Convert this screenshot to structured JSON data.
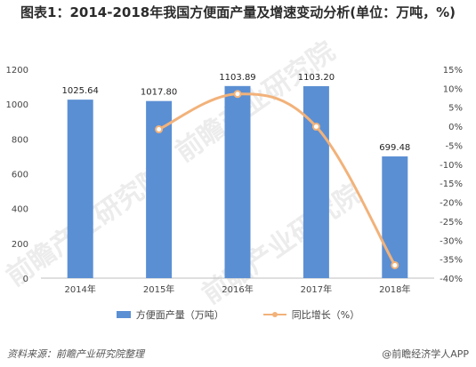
{
  "title": "图表1：2014-2018年我国方便面产量及增速变动分析(单位：万吨，%)",
  "source": "资料来源：前瞻产业研究院整理",
  "brand": "@前瞻经济学人APP",
  "watermark": "前瞻产业研究院",
  "colors": {
    "bar": "#5b8fd3",
    "line": "#f2b27a"
  },
  "chart_data": {
    "type": "bar",
    "categories": [
      "2014年",
      "2015年",
      "2016年",
      "2017年",
      "2018年"
    ],
    "series": [
      {
        "name": "方便面产量（万吨）",
        "type": "bar",
        "axis": "left",
        "values": [
          1025.64,
          1017.8,
          1103.89,
          1103.2,
          699.48
        ],
        "labels": [
          "1025.64",
          "1017.80",
          "1103.89",
          "1103.20",
          "699.48"
        ]
      },
      {
        "name": "同比增长（%）",
        "type": "line",
        "axis": "right",
        "values": [
          null,
          -0.8,
          8.5,
          -0.1,
          -36.6
        ]
      }
    ],
    "y_left": {
      "min": 0,
      "max": 1200,
      "ticks": [
        "0",
        "200",
        "400",
        "600",
        "800",
        "1000",
        "1200"
      ]
    },
    "y_right": {
      "min": -40,
      "max": 15,
      "ticks": [
        "15%",
        "10%",
        "5%",
        "0%",
        "-5%",
        "-10%",
        "-15%",
        "-20%",
        "-25%",
        "-30%",
        "-35%",
        "-40%"
      ]
    },
    "legend": "bottom",
    "grid": false
  }
}
